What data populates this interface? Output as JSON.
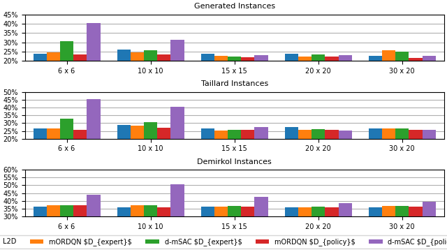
{
  "chart_data": [
    {
      "type": "bar",
      "title": "Generated Instances",
      "categories": [
        "6 x 6",
        "10 x 10",
        "15 x 15",
        "20 x 20",
        "30 x 20"
      ],
      "series": [
        {
          "name": "L2D",
          "values": [
            24.0,
            26.2,
            23.8,
            23.8,
            22.8
          ]
        },
        {
          "name": "mORDQN $D_{expert}$",
          "values": [
            24.8,
            24.8,
            22.8,
            22.5,
            25.8
          ]
        },
        {
          "name": "d-mSAC $D_{expert}$",
          "values": [
            30.8,
            25.8,
            22.5,
            23.5,
            25.0
          ]
        },
        {
          "name": "mORDQN $D_{policy}$",
          "values": [
            23.6,
            23.5,
            22.2,
            22.3,
            21.8
          ]
        },
        {
          "name": "d-mSAC $D_{policy}$",
          "values": [
            40.5,
            31.5,
            23.3,
            23.0,
            22.8
          ]
        }
      ],
      "ylim": [
        20,
        45
      ],
      "yticks": [
        {
          "value": 20,
          "label": "20%"
        },
        {
          "value": 25,
          "label": "25%"
        },
        {
          "value": 30,
          "label": "30%"
        },
        {
          "value": 35,
          "label": "35%"
        },
        {
          "value": 40,
          "label": "40%"
        },
        {
          "value": 45,
          "label": "45%"
        }
      ],
      "grid": true,
      "legend": "lower center"
    },
    {
      "type": "bar",
      "title": "Taillard Instances",
      "categories": [
        "6 x 6",
        "10 x 10",
        "15 x 15",
        "20 x 20",
        "30 x 20"
      ],
      "series": [
        {
          "name": "L2D",
          "values": [
            26.8,
            29.0,
            26.8,
            27.5,
            26.5
          ]
        },
        {
          "name": "mORDQN $D_{expert}$",
          "values": [
            26.5,
            28.5,
            25.2,
            25.5,
            26.5
          ]
        },
        {
          "name": "d-mSAC $D_{expert}$",
          "values": [
            33.0,
            30.5,
            25.5,
            26.0,
            26.5
          ]
        },
        {
          "name": "mORDQN $D_{policy}$",
          "values": [
            25.5,
            27.0,
            25.8,
            25.5,
            25.5
          ]
        },
        {
          "name": "d-mSAC $D_{policy}$",
          "values": [
            45.5,
            40.5,
            27.5,
            25.2,
            25.5
          ]
        }
      ],
      "ylim": [
        20,
        50
      ],
      "yticks": [
        {
          "value": 20,
          "label": "20%"
        },
        {
          "value": 25,
          "label": "25%"
        },
        {
          "value": 30,
          "label": "30%"
        },
        {
          "value": 35,
          "label": "35%"
        },
        {
          "value": 40,
          "label": "40%"
        },
        {
          "value": 45,
          "label": "45%"
        },
        {
          "value": 50,
          "label": "50%"
        }
      ],
      "grid": true,
      "legend": "lower center"
    },
    {
      "type": "bar",
      "title": "Demirkol Instances",
      "categories": [
        "6 x 6",
        "10 x 10",
        "15 x 15",
        "20 x 20",
        "30 x 20"
      ],
      "series": [
        {
          "name": "L2D",
          "values": [
            36.2,
            36.0,
            36.2,
            36.0,
            36.0
          ]
        },
        {
          "name": "mORDQN $D_{expert}$",
          "values": [
            37.2,
            37.0,
            36.5,
            36.0,
            36.8
          ]
        },
        {
          "name": "d-mSAC $D_{expert}$",
          "values": [
            37.2,
            37.0,
            36.8,
            36.5,
            36.8
          ]
        },
        {
          "name": "mORDQN $D_{policy}$",
          "values": [
            37.0,
            36.0,
            36.5,
            36.0,
            36.2
          ]
        },
        {
          "name": "d-mSAC $D_{policy}$",
          "values": [
            44.0,
            50.5,
            42.5,
            38.5,
            39.5
          ]
        }
      ],
      "ylim": [
        30,
        60
      ],
      "yticks": [
        {
          "value": 30,
          "label": "30%"
        },
        {
          "value": 35,
          "label": "35%"
        },
        {
          "value": 40,
          "label": "40%"
        },
        {
          "value": 45,
          "label": "45%"
        },
        {
          "value": 50,
          "label": "50%"
        },
        {
          "value": 55,
          "label": "55%"
        },
        {
          "value": 60,
          "label": "60%"
        }
      ],
      "grid": true,
      "legend": "lower center"
    }
  ]
}
